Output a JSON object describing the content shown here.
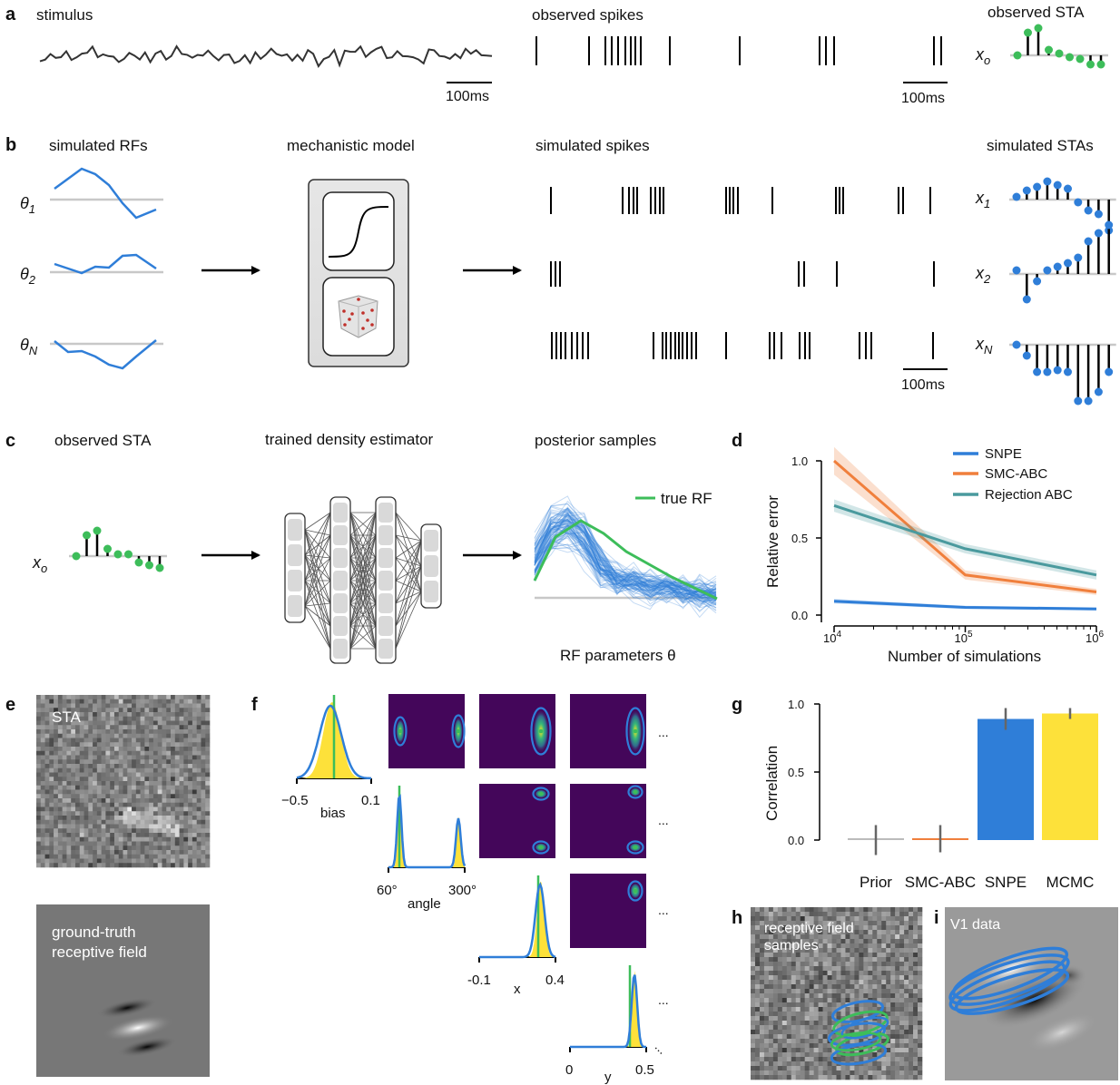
{
  "panels": {
    "a": {
      "letter": "a",
      "stimulus_title": "stimulus",
      "spikes_title": "observed spikes",
      "sta_title": "observed STA",
      "scale_label": "100ms",
      "x_label": "x",
      "x_sub": "o"
    },
    "b": {
      "letter": "b",
      "rf_title": "simulated RFs",
      "model_title": "mechanistic model",
      "spikes_title": "simulated spikes",
      "sta_title": "simulated STAs",
      "scale_label": "100ms",
      "theta_labels": [
        {
          "sym": "θ",
          "sub": "1"
        },
        {
          "sym": "θ",
          "sub": "2"
        },
        {
          "sym": "θ",
          "sub": "N"
        }
      ],
      "x_labels": [
        {
          "sym": "x",
          "sub": "1"
        },
        {
          "sym": "x",
          "sub": "2"
        },
        {
          "sym": "x",
          "sub": "N"
        }
      ]
    },
    "c": {
      "letter": "c",
      "sta_title": "observed STA",
      "estimator_title": "trained density estimator",
      "posterior_title": "posterior samples",
      "legend_true_rf": "true RF",
      "x_axis_label": "RF parameters  θ",
      "x_label": "x",
      "x_sub": "o"
    },
    "e": {
      "letter": "e",
      "sta_label": "STA",
      "gt_label_line1": "ground-truth",
      "gt_label_line2": "receptive field"
    },
    "f": {
      "letter": "f",
      "ellipsis": "...",
      "diag": [
        {
          "name": "bias",
          "ticks": [
            "−0.5",
            "0.1"
          ]
        },
        {
          "name": "angle",
          "ticks": [
            "60°",
            "300°"
          ]
        },
        {
          "name": "x",
          "ticks": [
            "-0.1",
            "0.4"
          ]
        },
        {
          "name": "y",
          "ticks": [
            "0",
            "0.5"
          ]
        }
      ]
    },
    "h": {
      "letter": "h",
      "label_line1": "receptive field",
      "label_line2": "samples"
    },
    "i": {
      "letter": "i",
      "label": "V1 data"
    }
  },
  "colors": {
    "snpe": "#2f7ed8",
    "smc_abc": "#f07f3c",
    "rejection_abc": "#4a9a9e",
    "mcmc": "#fde13a",
    "sta_green": "#3dbd5a",
    "sim_blue": "#2f7ed8",
    "viridis_bg": "#44065a"
  },
  "chart_data": [
    {
      "id": "d",
      "panel_letter": "d",
      "type": "line",
      "xlabel": "Number of simulations",
      "ylabel": "Relative error",
      "x": [
        10000,
        100000,
        1000000
      ],
      "x_ticks": [
        {
          "base": "10",
          "exp": "4"
        },
        {
          "base": "10",
          "exp": "5"
        },
        {
          "base": "10",
          "exp": "6"
        }
      ],
      "x_scale": "log",
      "ylim": [
        0,
        1.05
      ],
      "y_ticks": [
        "0.0",
        "0.5",
        "1.0"
      ],
      "legend_position": "top-right",
      "series": [
        {
          "name": "SNPE",
          "color": "#2f7ed8",
          "values": [
            0.09,
            0.05,
            0.04
          ],
          "band": [
            0.015,
            0.01,
            0.01
          ]
        },
        {
          "name": "SMC-ABC",
          "color": "#f07f3c",
          "values": [
            1.0,
            0.26,
            0.15
          ],
          "band": [
            0.09,
            0.03,
            0.02
          ]
        },
        {
          "name": "Rejection ABC",
          "color": "#4a9a9e",
          "values": [
            0.71,
            0.43,
            0.26
          ],
          "band": [
            0.04,
            0.03,
            0.03
          ]
        }
      ]
    },
    {
      "id": "g",
      "panel_letter": "g",
      "type": "bar",
      "ylabel": "Correlation",
      "categories": [
        "Prior",
        "SMC-ABC",
        "SNPE",
        "MCMC"
      ],
      "values": [
        0.0,
        0.01,
        0.89,
        0.93
      ],
      "errors": [
        0.11,
        0.1,
        0.08,
        0.04
      ],
      "colors": [
        "#bbbbbb",
        "#f07f3c",
        "#2f7ed8",
        "#fde13a"
      ],
      "ylim": [
        0,
        1.0
      ],
      "y_ticks": [
        "0.0",
        "0.5",
        "1.0"
      ]
    }
  ]
}
